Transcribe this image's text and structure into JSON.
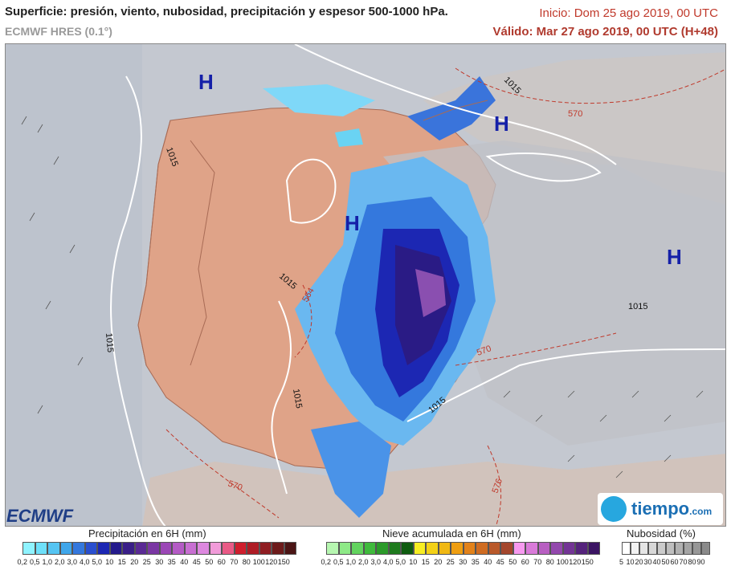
{
  "header": {
    "title": "Superficie: presión, viento, nubosidad, precipitación y espesor 500-1000 hPa.",
    "model": "ECMWF HRES (0.1°)",
    "init": "Inicio: Dom 25 ago 2019, 00 UTC",
    "valid": "Válido: Mar 27 ago 2019, 00 UTC (H+48)"
  },
  "map": {
    "high_marks": [
      "H",
      "H",
      "H",
      "H"
    ],
    "isobar_labels": [
      "1015",
      "1015",
      "1015",
      "1015",
      "1015",
      "1015",
      "1015"
    ],
    "thickness_labels": [
      "570",
      "570",
      "570",
      "576",
      "564",
      "570"
    ]
  },
  "logos": {
    "ecmwf": "ECMWF",
    "tiempo": "tiempo",
    "tiempo_suffix": ".com"
  },
  "legend": {
    "precip": {
      "title": "Precipitación en 6H (mm)",
      "labels": [
        "0,2",
        "0,5",
        "1,0",
        "2,0",
        "3,0",
        "4,0",
        "5,0",
        "10",
        "15",
        "20",
        "25",
        "30",
        "35",
        "40",
        "45",
        "50",
        "60",
        "70",
        "80",
        "100",
        "120",
        "150"
      ],
      "colors": [
        "#8ff3ff",
        "#6ee0fa",
        "#55c4f2",
        "#3fa6ea",
        "#3478dd",
        "#2a4fcf",
        "#1c27b3",
        "#241a8c",
        "#3a1f88",
        "#5a2a94",
        "#7a37a3",
        "#9b47b6",
        "#b45bc5",
        "#c86fd2",
        "#dd88df",
        "#f19bd9",
        "#e95a86",
        "#cf1e2d",
        "#ae1c25",
        "#8f1d22",
        "#6d1b1b",
        "#4b1515"
      ]
    },
    "snow": {
      "title": "Nieve acumulada en 6H (mm)",
      "labels": [
        "0,2",
        "0,5",
        "1,0",
        "2,0",
        "3,0",
        "4,0",
        "5,0",
        "10",
        "15",
        "20",
        "25",
        "30",
        "35",
        "40",
        "45",
        "50",
        "60",
        "70",
        "80",
        "100",
        "120",
        "150"
      ],
      "colors": [
        "#b6f6b0",
        "#8ee987",
        "#62d35e",
        "#3fba3c",
        "#2b9a2a",
        "#1e7a1d",
        "#0f5c10",
        "#f7ee23",
        "#f3d117",
        "#f0b814",
        "#ee9e12",
        "#e2821a",
        "#cf6c22",
        "#b9592a",
        "#a4472d",
        "#f79af0",
        "#d97ad9",
        "#b85fc2",
        "#9348ad",
        "#733495",
        "#55237c",
        "#3b1463"
      ]
    },
    "cloud": {
      "title": "Nubosidad (%)",
      "labels": [
        "5",
        "10",
        "20",
        "30",
        "40",
        "50",
        "60",
        "70",
        "80",
        "90"
      ],
      "colors": [
        "#ffffff",
        "#f2f2f2",
        "#e5e5e5",
        "#d8d8d8",
        "#cbcbcb",
        "#bebebe",
        "#b1b1b1",
        "#a4a4a4",
        "#979797",
        "#8a8a8a"
      ]
    }
  }
}
